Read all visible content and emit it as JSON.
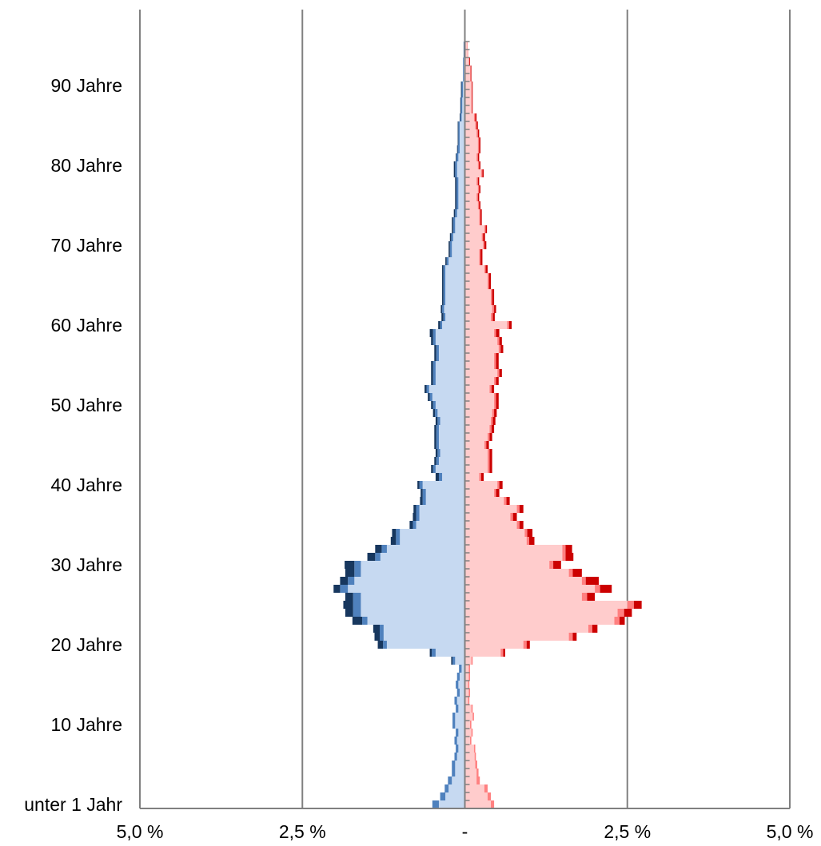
{
  "chart_data": {
    "type": "bar",
    "orientation": "horizontal",
    "subtype": "population-pyramid",
    "x_tick_labels": [
      "5,0 %",
      "2,5 %",
      "-",
      "2,5 %",
      "5,0 %"
    ],
    "x_ticks": [
      -5.0,
      -2.5,
      0,
      2.5,
      5.0
    ],
    "xlim": [
      -5.0,
      5.0
    ],
    "y_tick_labels": [
      {
        "age": 0,
        "label": "unter 1 Jahr"
      },
      {
        "age": 10,
        "label": "10 Jahre"
      },
      {
        "age": 20,
        "label": "20 Jahre"
      },
      {
        "age": 30,
        "label": "30 Jahre"
      },
      {
        "age": 40,
        "label": "40 Jahre"
      },
      {
        "age": 50,
        "label": "50 Jahre"
      },
      {
        "age": 60,
        "label": "60 Jahre"
      },
      {
        "age": 70,
        "label": "70 Jahre"
      },
      {
        "age": 80,
        "label": "80 Jahre"
      },
      {
        "age": 90,
        "label": "90 Jahre"
      }
    ],
    "ages": [
      0,
      1,
      2,
      3,
      4,
      5,
      6,
      7,
      8,
      9,
      10,
      11,
      12,
      13,
      14,
      15,
      16,
      17,
      18,
      19,
      20,
      21,
      22,
      23,
      24,
      25,
      26,
      27,
      28,
      29,
      30,
      31,
      32,
      33,
      34,
      35,
      36,
      37,
      38,
      39,
      40,
      41,
      42,
      43,
      44,
      45,
      46,
      47,
      48,
      49,
      50,
      51,
      52,
      53,
      54,
      55,
      56,
      57,
      58,
      59,
      60,
      61,
      62,
      63,
      64,
      65,
      66,
      67,
      68,
      69,
      70,
      71,
      72,
      73,
      74,
      75,
      76,
      77,
      78,
      79,
      80,
      81,
      82,
      83,
      84,
      85,
      86,
      87,
      88,
      89,
      90,
      91,
      92,
      93,
      94,
      95
    ],
    "male": {
      "base": [
        0.4,
        0.3,
        0.25,
        0.2,
        0.15,
        0.15,
        0.12,
        0.1,
        0.12,
        0.1,
        0.15,
        0.15,
        0.1,
        0.12,
        0.08,
        0.1,
        0.08,
        0.05,
        0.15,
        0.45,
        1.2,
        1.25,
        1.25,
        1.5,
        1.6,
        1.6,
        1.6,
        1.8,
        1.7,
        1.6,
        1.6,
        1.3,
        1.2,
        1.0,
        1.0,
        0.75,
        0.7,
        0.7,
        0.6,
        0.6,
        0.65,
        0.35,
        0.45,
        0.4,
        0.38,
        0.4,
        0.4,
        0.4,
        0.38,
        0.42,
        0.45,
        0.5,
        0.55,
        0.45,
        0.45,
        0.45,
        0.4,
        0.4,
        0.45,
        0.45,
        0.35,
        0.3,
        0.32,
        0.3,
        0.3,
        0.3,
        0.3,
        0.3,
        0.25,
        0.2,
        0.2,
        0.18,
        0.15,
        0.15,
        0.12,
        0.1,
        0.1,
        0.1,
        0.1,
        0.12,
        0.12,
        0.1,
        0.08,
        0.08,
        0.08,
        0.08,
        0.05,
        0.04,
        0.04,
        0.03,
        0.03,
        0.02,
        0.02,
        0.02,
        0.01,
        0.01
      ],
      "mid": [
        0.1,
        0.08,
        0.06,
        0.06,
        0.05,
        0.05,
        0.04,
        0.04,
        0.04,
        0.04,
        0.04,
        0.04,
        0.04,
        0.04,
        0.04,
        0.04,
        0.04,
        0.04,
        0.04,
        0.06,
        0.06,
        0.06,
        0.06,
        0.08,
        0.12,
        0.12,
        0.12,
        0.12,
        0.1,
        0.1,
        0.1,
        0.08,
        0.08,
        0.06,
        0.06,
        0.05,
        0.05,
        0.05,
        0.05,
        0.05,
        0.05,
        0.05,
        0.04,
        0.04,
        0.04,
        0.04,
        0.04,
        0.04,
        0.04,
        0.04,
        0.04,
        0.04,
        0.04,
        0.04,
        0.04,
        0.04,
        0.04,
        0.04,
        0.04,
        0.04,
        0.03,
        0.03,
        0.03,
        0.03,
        0.03,
        0.03,
        0.03,
        0.03,
        0.03,
        0.03,
        0.03,
        0.03,
        0.03,
        0.03,
        0.03,
        0.03,
        0.03,
        0.03,
        0.03,
        0.03,
        0.03,
        0.03,
        0.03,
        0.02,
        0.02,
        0.02,
        0.02,
        0.02,
        0.02,
        0.02,
        0.02,
        0.01,
        0.01,
        0.01,
        0.01,
        0.01
      ],
      "dark": [
        0.0,
        0.0,
        0.0,
        0.0,
        0.0,
        0.0,
        0.0,
        0.0,
        0.0,
        0.0,
        0.0,
        0.0,
        0.0,
        0.0,
        0.0,
        0.0,
        0.0,
        0.0,
        0.02,
        0.03,
        0.08,
        0.08,
        0.1,
        0.15,
        0.12,
        0.15,
        0.12,
        0.1,
        0.12,
        0.14,
        0.15,
        0.12,
        0.1,
        0.08,
        0.06,
        0.05,
        0.05,
        0.04,
        0.04,
        0.03,
        0.03,
        0.05,
        0.03,
        0.03,
        0.03,
        0.03,
        0.03,
        0.03,
        0.03,
        0.03,
        0.03,
        0.03,
        0.03,
        0.03,
        0.03,
        0.03,
        0.03,
        0.03,
        0.03,
        0.05,
        0.03,
        0.03,
        0.02,
        0.02,
        0.02,
        0.02,
        0.02,
        0.02,
        0.02,
        0.02,
        0.02,
        0.02,
        0.02,
        0.02,
        0.02,
        0.02,
        0.02,
        0.02,
        0.02,
        0.02,
        0.02,
        0.01,
        0.01,
        0.01,
        0.01,
        0.01,
        0.01,
        0.01,
        0.01,
        0.01,
        0.01,
        0.0,
        0.0,
        0.0,
        0.0,
        0.0
      ]
    },
    "female": {
      "base": [
        0.4,
        0.35,
        0.3,
        0.18,
        0.18,
        0.16,
        0.15,
        0.14,
        0.08,
        0.1,
        0.08,
        0.12,
        0.1,
        0.05,
        0.06,
        0.05,
        0.06,
        0.06,
        0.1,
        0.55,
        0.9,
        1.6,
        1.9,
        2.3,
        2.35,
        2.5,
        1.8,
        2.0,
        1.8,
        1.6,
        1.3,
        1.5,
        1.5,
        0.95,
        0.92,
        0.8,
        0.7,
        0.8,
        0.6,
        0.45,
        0.5,
        0.22,
        0.35,
        0.35,
        0.35,
        0.3,
        0.35,
        0.38,
        0.4,
        0.42,
        0.45,
        0.45,
        0.38,
        0.45,
        0.5,
        0.45,
        0.45,
        0.52,
        0.5,
        0.45,
        0.65,
        0.4,
        0.42,
        0.4,
        0.4,
        0.35,
        0.35,
        0.3,
        0.22,
        0.22,
        0.28,
        0.26,
        0.3,
        0.22,
        0.22,
        0.2,
        0.18,
        0.2,
        0.18,
        0.25,
        0.2,
        0.18,
        0.2,
        0.2,
        0.18,
        0.16,
        0.14,
        0.1,
        0.1,
        0.1,
        0.1,
        0.08,
        0.08,
        0.06,
        0.04,
        0.03
      ],
      "mid": [
        0.05,
        0.05,
        0.05,
        0.05,
        0.03,
        0.03,
        0.02,
        0.02,
        0.02,
        0.02,
        0.02,
        0.02,
        0.02,
        0.02,
        0.02,
        0.02,
        0.02,
        0.02,
        0.02,
        0.04,
        0.05,
        0.06,
        0.06,
        0.08,
        0.1,
        0.1,
        0.08,
        0.08,
        0.06,
        0.06,
        0.06,
        0.05,
        0.05,
        0.04,
        0.04,
        0.04,
        0.04,
        0.04,
        0.04,
        0.03,
        0.03,
        0.03,
        0.03,
        0.03,
        0.03,
        0.03,
        0.03,
        0.03,
        0.03,
        0.03,
        0.03,
        0.03,
        0.03,
        0.03,
        0.03,
        0.03,
        0.03,
        0.03,
        0.03,
        0.03,
        0.03,
        0.03,
        0.03,
        0.02,
        0.02,
        0.02,
        0.02,
        0.02,
        0.02,
        0.02,
        0.02,
        0.02,
        0.02,
        0.02,
        0.02,
        0.02,
        0.02,
        0.02,
        0.02,
        0.02,
        0.02,
        0.02,
        0.02,
        0.02,
        0.02,
        0.02,
        0.02,
        0.01,
        0.01,
        0.01,
        0.01,
        0.01,
        0.01,
        0.01,
        0.01,
        0.01
      ],
      "dark": [
        0.0,
        0.0,
        0.0,
        0.0,
        0.0,
        0.0,
        0.0,
        0.0,
        0.0,
        0.0,
        0.0,
        0.0,
        0.0,
        0.0,
        0.0,
        0.0,
        0.0,
        0.0,
        0.0,
        0.03,
        0.05,
        0.06,
        0.08,
        0.08,
        0.12,
        0.12,
        0.12,
        0.18,
        0.2,
        0.14,
        0.12,
        0.12,
        0.1,
        0.08,
        0.08,
        0.06,
        0.06,
        0.06,
        0.05,
        0.05,
        0.05,
        0.04,
        0.04,
        0.04,
        0.04,
        0.04,
        0.04,
        0.04,
        0.04,
        0.04,
        0.04,
        0.04,
        0.04,
        0.04,
        0.04,
        0.04,
        0.04,
        0.04,
        0.04,
        0.05,
        0.04,
        0.03,
        0.03,
        0.03,
        0.03,
        0.03,
        0.03,
        0.03,
        0.03,
        0.03,
        0.03,
        0.03,
        0.02,
        0.02,
        0.02,
        0.02,
        0.02,
        0.02,
        0.02,
        0.02,
        0.02,
        0.02,
        0.02,
        0.02,
        0.02,
        0.02,
        0.02,
        0.01,
        0.01,
        0.01,
        0.01,
        0.01,
        0.01,
        0.01,
        0.0,
        0.0
      ]
    },
    "colors": {
      "male_base": "#c6d9f1",
      "male_mid": "#4f81bd",
      "male_dark": "#17375e",
      "female_base": "#ffcccc",
      "female_mid": "#ff8080",
      "female_dark": "#cc0000",
      "gridline": "#808080",
      "axis": "#808080"
    },
    "grid": true
  }
}
